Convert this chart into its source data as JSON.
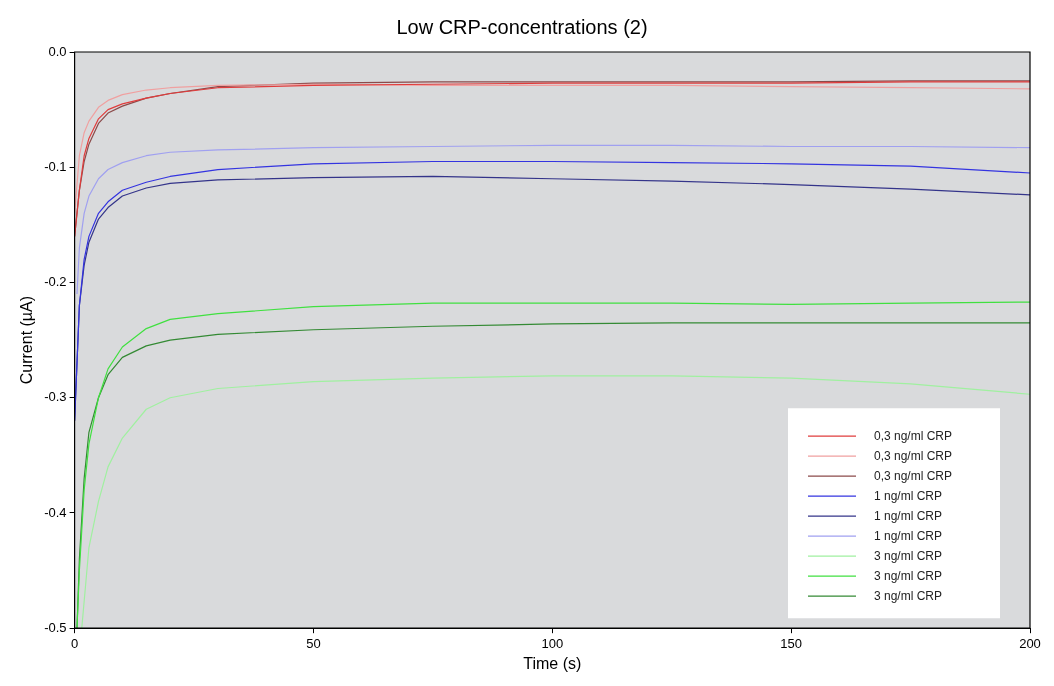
{
  "chart_data": {
    "type": "line",
    "title": "Low CRP-concentrations (2)",
    "xlabel": "Time (s)",
    "ylabel": "Current (µA)",
    "xlim": [
      0,
      200
    ],
    "xticks": [
      0,
      50,
      100,
      150,
      200
    ],
    "ylim": [
      -0.5,
      0
    ],
    "yticks": [
      -0.5,
      -0.4,
      -0.3,
      -0.2,
      -0.1,
      {
        "value": 0,
        "label": "0.0"
      }
    ],
    "grid": false,
    "legend": "bottom right",
    "marker": "none",
    "line_style": "solid",
    "series": [
      {
        "name": "0,3 ng/ml CRP",
        "color": "#e03c3c",
        "x": [
          0,
          1,
          2,
          3,
          5,
          7,
          10,
          15,
          20,
          30,
          50,
          75,
          100,
          125,
          150,
          175,
          200
        ],
        "values": [
          -0.16,
          -0.12,
          -0.09,
          -0.075,
          -0.058,
          -0.05,
          -0.045,
          -0.04,
          -0.036,
          -0.031,
          -0.029,
          -0.028,
          -0.027,
          -0.027,
          -0.027,
          -0.026,
          -0.026
        ]
      },
      {
        "name": "0,3 ng/ml CRP",
        "color": "#f0a0a0",
        "x": [
          0,
          1,
          2,
          3,
          5,
          7,
          10,
          15,
          20,
          30,
          50,
          75,
          100,
          125,
          150,
          175,
          200
        ],
        "values": [
          -0.14,
          -0.09,
          -0.07,
          -0.06,
          -0.048,
          -0.042,
          -0.037,
          -0.033,
          -0.031,
          -0.029,
          -0.028,
          -0.029,
          -0.029,
          -0.029,
          -0.03,
          -0.031,
          -0.032
        ]
      },
      {
        "name": "0,3 ng/ml CRP",
        "color": "#8b4a4a",
        "x": [
          0,
          1,
          2,
          3,
          5,
          7,
          10,
          15,
          20,
          30,
          50,
          75,
          100,
          125,
          150,
          175,
          200
        ],
        "values": [
          -0.16,
          -0.12,
          -0.095,
          -0.08,
          -0.062,
          -0.053,
          -0.047,
          -0.04,
          -0.036,
          -0.03,
          -0.027,
          -0.026,
          -0.026,
          -0.026,
          -0.026,
          -0.025,
          -0.025
        ]
      },
      {
        "name": "1 ng/ml CRP",
        "color": "#3434e0",
        "x": [
          0,
          1,
          2,
          3,
          5,
          7,
          10,
          15,
          20,
          30,
          50,
          75,
          100,
          125,
          150,
          175,
          200
        ],
        "values": [
          -0.32,
          -0.22,
          -0.18,
          -0.16,
          -0.14,
          -0.13,
          -0.12,
          -0.113,
          -0.108,
          -0.102,
          -0.097,
          -0.095,
          -0.095,
          -0.096,
          -0.097,
          -0.099,
          -0.105
        ]
      },
      {
        "name": "1 ng/ml CRP",
        "color": "#34348a",
        "x": [
          0,
          1,
          2,
          3,
          5,
          7,
          10,
          15,
          20,
          30,
          50,
          75,
          100,
          125,
          150,
          175,
          200
        ],
        "values": [
          -0.32,
          -0.22,
          -0.185,
          -0.165,
          -0.145,
          -0.135,
          -0.125,
          -0.118,
          -0.114,
          -0.111,
          -0.109,
          -0.108,
          -0.11,
          -0.112,
          -0.115,
          -0.119,
          -0.124
        ]
      },
      {
        "name": "1 ng/ml CRP",
        "color": "#a0a0f0",
        "x": [
          0.5,
          1,
          2,
          3,
          5,
          7,
          10,
          15,
          20,
          30,
          50,
          75,
          100,
          125,
          150,
          175,
          200
        ],
        "values": [
          -0.21,
          -0.17,
          -0.14,
          -0.125,
          -0.11,
          -0.102,
          -0.096,
          -0.09,
          -0.087,
          -0.085,
          -0.083,
          -0.082,
          -0.081,
          -0.081,
          -0.082,
          -0.082,
          -0.083
        ]
      },
      {
        "name": "3 ng/ml CRP",
        "color": "#a0f0a0",
        "x": [
          1.5,
          3,
          5,
          7,
          10,
          15,
          20,
          30,
          50,
          75,
          100,
          125,
          150,
          175,
          200
        ],
        "values": [
          -0.5,
          -0.43,
          -0.39,
          -0.36,
          -0.335,
          -0.31,
          -0.3,
          -0.292,
          -0.286,
          -0.283,
          -0.281,
          -0.281,
          -0.283,
          -0.288,
          -0.297
        ]
      },
      {
        "name": "3 ng/ml CRP",
        "color": "#40e040",
        "x": [
          0.5,
          1,
          2,
          3,
          5,
          7,
          10,
          15,
          20,
          30,
          50,
          75,
          100,
          125,
          150,
          175,
          200
        ],
        "values": [
          -0.5,
          -0.45,
          -0.38,
          -0.34,
          -0.3,
          -0.275,
          -0.256,
          -0.24,
          -0.232,
          -0.227,
          -0.221,
          -0.218,
          -0.218,
          -0.218,
          -0.219,
          -0.218,
          -0.217
        ]
      },
      {
        "name": "3 ng/ml CRP",
        "color": "#348a34",
        "x": [
          0.5,
          1,
          2,
          3,
          5,
          7,
          10,
          15,
          20,
          30,
          50,
          75,
          100,
          125,
          150,
          175,
          200
        ],
        "values": [
          -0.5,
          -0.44,
          -0.37,
          -0.33,
          -0.3,
          -0.28,
          -0.265,
          -0.255,
          -0.25,
          -0.245,
          -0.241,
          -0.238,
          -0.236,
          -0.235,
          -0.235,
          -0.235,
          -0.235
        ]
      }
    ]
  }
}
